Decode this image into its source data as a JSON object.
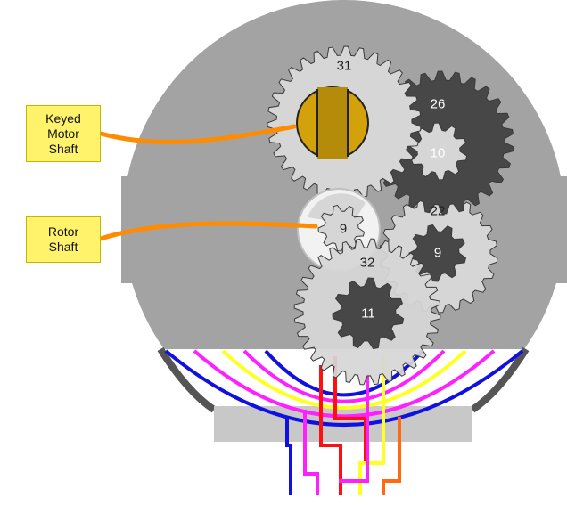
{
  "labels": {
    "keyed_motor_shaft": [
      "Keyed",
      "Motor",
      "Shaft"
    ],
    "rotor_shaft": [
      "Rotor",
      "Shaft"
    ]
  },
  "gears": {
    "g31": "31",
    "g26": "26",
    "g10": "10",
    "g22": "22",
    "g9_upper": "9",
    "g9_lower": "9",
    "g32": "32",
    "g11": "11"
  },
  "colors": {
    "housing": "#a3a3a3",
    "gear_light": "#d6d6d6",
    "gear_dark": "#474747",
    "shaft_gold": "#d3a20a",
    "leader": "#ff8c00",
    "callout_fill": "#fff36b",
    "wire_blue": "#1010e0",
    "wire_magenta": "#ff20ff",
    "wire_yellow": "#ffff20",
    "wire_red": "#ff1010",
    "wire_orange": "#ff6a10"
  }
}
